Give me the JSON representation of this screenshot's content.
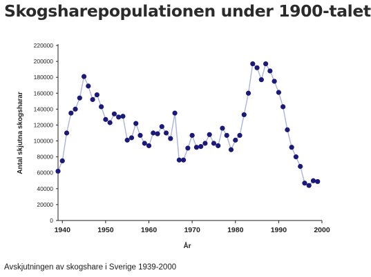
{
  "header": {
    "title": "Skogsharepopulationen under 1900-talet"
  },
  "footer": {
    "caption": "Avskjutningen av skogshare i Sverige 1939-2000"
  },
  "colors": {
    "line": "#a9b3de",
    "marker": "#1c1a78",
    "axis": "#222222"
  },
  "chart_data": {
    "type": "line",
    "title": "",
    "xlabel": "År",
    "ylabel": "Antal skjutna skogsharar",
    "xlim": [
      1939,
      2000
    ],
    "ylim": [
      0,
      220000
    ],
    "xticks": [
      1940,
      1950,
      1960,
      1970,
      1980,
      1990,
      2000
    ],
    "yticks": [
      0,
      20000,
      40000,
      60000,
      80000,
      100000,
      120000,
      140000,
      160000,
      180000,
      200000,
      220000
    ],
    "ytick_labels": [
      "0",
      "20000",
      "40000",
      "60000",
      "80000",
      "100000",
      "120000",
      "140000",
      "160000",
      "180000",
      "200000",
      "220000"
    ],
    "grid": false,
    "series": [
      {
        "x": [
          1939,
          1940,
          1941,
          1942,
          1943,
          1944,
          1945,
          1946,
          1947,
          1948,
          1949,
          1950,
          1951,
          1952,
          1953,
          1954,
          1955,
          1956,
          1957,
          1958,
          1959,
          1960,
          1961,
          1962,
          1963,
          1964,
          1965,
          1966,
          1967,
          1968,
          1969,
          1970,
          1971,
          1972,
          1973,
          1974,
          1975,
          1976,
          1977,
          1978,
          1979,
          1980,
          1981,
          1982,
          1983,
          1984,
          1985,
          1986,
          1987,
          1988,
          1989,
          1990,
          1991,
          1992,
          1993,
          1994,
          1995,
          1996,
          1997,
          1998,
          1999
        ],
        "y": [
          62000,
          75000,
          110000,
          135000,
          140000,
          154000,
          181000,
          169000,
          152000,
          158000,
          143000,
          127000,
          123000,
          134000,
          130000,
          131000,
          101000,
          104000,
          122000,
          107000,
          97000,
          94000,
          110000,
          109000,
          118000,
          110000,
          103000,
          135000,
          76000,
          76000,
          91000,
          107000,
          92000,
          93000,
          97000,
          108000,
          97000,
          94000,
          116000,
          107000,
          89000,
          101000,
          107000,
          133000,
          160000,
          197000,
          192000,
          177000,
          197000,
          188000,
          175000,
          161000,
          143000,
          114000,
          92000,
          80000,
          68000,
          47000,
          44000,
          50000,
          49000
        ]
      }
    ]
  }
}
